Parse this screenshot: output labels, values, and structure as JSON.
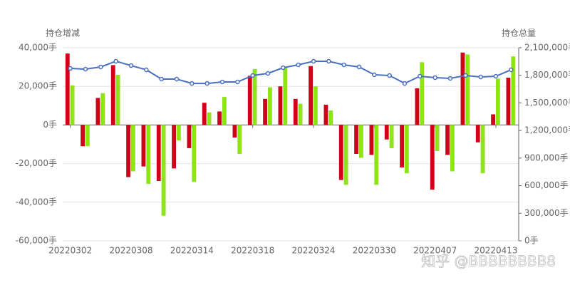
{
  "chart_data": {
    "type": "bar",
    "y_label": "持仓增减",
    "y2_label": "持仓总量",
    "watermark": "知乎 @BBBBBBBB8",
    "categories": [
      "20220302",
      null,
      null,
      null,
      "20220308",
      null,
      null,
      null,
      "20220314",
      null,
      null,
      null,
      "20220318",
      null,
      null,
      null,
      "20220324",
      null,
      null,
      null,
      "20220330",
      null,
      null,
      null,
      "20220407",
      null,
      null,
      null,
      "20220413",
      null
    ],
    "series": [
      {
        "type": "bar",
        "color": "#d0021b",
        "values": [
          37000,
          -11000,
          14000,
          31000,
          -27000,
          -21500,
          -29000,
          -22500,
          -12000,
          11500,
          7000,
          -6500,
          25500,
          13500,
          20000,
          13500,
          30500,
          10500,
          -28500,
          -15000,
          -15500,
          -7500,
          -22000,
          19000,
          -33500,
          -15500,
          37500,
          -9000,
          5500,
          24500
        ]
      },
      {
        "type": "bar",
        "color": "#8fe31a",
        "values": [
          20500,
          -11000,
          16500,
          26000,
          -24000,
          -30500,
          -47000,
          -8000,
          -29500,
          6500,
          14500,
          -15000,
          29000,
          19500,
          30000,
          11000,
          20000,
          7500,
          -31000,
          -17000,
          -31000,
          -12000,
          -25000,
          32500,
          -13500,
          -24000,
          36500,
          -25000,
          24000,
          35500
        ]
      },
      {
        "type": "line",
        "axis": "y2",
        "color": "#4a6fbf",
        "values": [
          1875000,
          1867000,
          1891000,
          1953000,
          1906000,
          1860000,
          1759000,
          1759000,
          1712000,
          1712000,
          1728000,
          1728000,
          1798000,
          1821000,
          1883000,
          1914000,
          1953000,
          1953000,
          1914000,
          1891000,
          1806000,
          1798000,
          1712000,
          1790000,
          1775000,
          1767000,
          1798000,
          1782000,
          1790000,
          1860000
        ]
      }
    ],
    "ylim": [
      -60000,
      40000
    ],
    "yticks": [
      {
        "value": -60000,
        "label": "-60,000手"
      },
      {
        "value": -40000,
        "label": "-40,000手"
      },
      {
        "value": -20000,
        "label": "-20,000手"
      },
      {
        "value": 0,
        "label": "0手"
      },
      {
        "value": 20000,
        "label": "20,000手"
      },
      {
        "value": 40000,
        "label": "40,000手"
      }
    ],
    "y2lim": [
      0,
      2100000
    ],
    "y2ticks": [
      {
        "value": 0,
        "label": "0手"
      },
      {
        "value": 300000,
        "label": "300,000手"
      },
      {
        "value": 600000,
        "label": "600,000手"
      },
      {
        "value": 900000,
        "label": "900,000手"
      },
      {
        "value": 1200000,
        "label": "1,200,000手"
      },
      {
        "value": 1500000,
        "label": "1,500,000手"
      },
      {
        "value": 1800000,
        "label": "1,800,000手"
      },
      {
        "value": 2100000,
        "label": "2,100,000手"
      }
    ],
    "grid": true
  }
}
